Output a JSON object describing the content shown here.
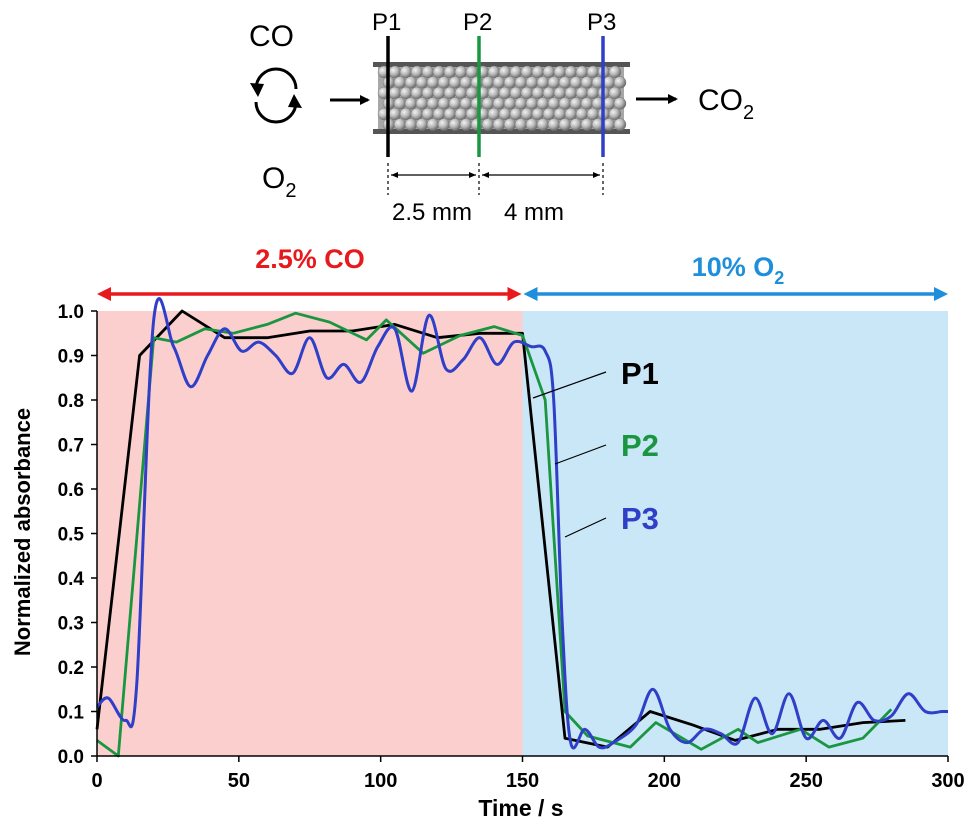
{
  "schematic": {
    "co_label": "CO",
    "o2_label": "O",
    "o2_sub": "2",
    "co2_label": "CO",
    "co2_sub": "2",
    "probes": [
      "P1",
      "P2",
      "P3"
    ],
    "dist1": "2.5 mm",
    "dist2": "4 mm"
  },
  "regions": {
    "left_label": "2.5% CO",
    "right_label_main": "10% O",
    "right_label_sub": "2",
    "left_color": "#fccfcf",
    "right_color": "#c9e7f6",
    "left_arrow_color": "#e8191c",
    "right_arrow_color": "#1f8fdc"
  },
  "chart_data": {
    "type": "line",
    "xlabel": "Time / s",
    "ylabel": "Normalized absorbance",
    "xlim": [
      0,
      300
    ],
    "ylim": [
      0,
      1.0
    ],
    "xticks": [
      0,
      50,
      100,
      150,
      200,
      250,
      300
    ],
    "yticks": [
      0.0,
      0.1,
      0.2,
      0.3,
      0.4,
      0.5,
      0.6,
      0.7,
      0.8,
      0.9,
      1.0
    ],
    "ytick_labels": [
      "0.0",
      "0.1",
      "0.2",
      "0.3",
      "0.4",
      "0.5",
      "0.6",
      "0.7",
      "0.8",
      "0.9",
      "1.0"
    ],
    "grid": false,
    "series": [
      {
        "name": "P1",
        "color": "#000000",
        "x": [
          0,
          15,
          30,
          45,
          60,
          75,
          90,
          105,
          120,
          135,
          150,
          165,
          180,
          195,
          210,
          225,
          240,
          255,
          270,
          285
        ],
        "y": [
          0.06,
          0.9,
          1.0,
          0.94,
          0.94,
          0.955,
          0.955,
          0.97,
          0.94,
          0.95,
          0.95,
          0.04,
          0.02,
          0.1,
          0.07,
          0.035,
          0.06,
          0.06,
          0.075,
          0.08
        ]
      },
      {
        "name": "P2",
        "color": "#1a9641",
        "x": [
          0,
          7.5,
          20,
          28,
          38,
          48,
          60,
          70,
          82,
          95,
          102,
          115,
          128,
          140,
          150,
          158,
          165,
          173,
          188,
          197,
          213,
          226,
          233,
          248,
          258,
          270,
          280
        ],
        "y": [
          0.035,
          0.0,
          0.94,
          0.93,
          0.96,
          0.95,
          0.97,
          0.995,
          0.975,
          0.935,
          0.98,
          0.905,
          0.945,
          0.965,
          0.945,
          0.8,
          0.1,
          0.045,
          0.02,
          0.075,
          0.015,
          0.06,
          0.03,
          0.06,
          0.02,
          0.04,
          0.105
        ]
      },
      {
        "name": "P3",
        "color": "#2f3fc7",
        "x": [
          0,
          4,
          10,
          14,
          20,
          27,
          33,
          39,
          45,
          51,
          57,
          63,
          69,
          75,
          81,
          87,
          93,
          99,
          105,
          111,
          117,
          123,
          129,
          135,
          141,
          147,
          153,
          158,
          161,
          164,
          167,
          172,
          177,
          182,
          190,
          196,
          202,
          208,
          214,
          220,
          226,
          232,
          238,
          244,
          250,
          256,
          262,
          268,
          274,
          280,
          286,
          292,
          298,
          300
        ],
        "y": [
          0.11,
          0.13,
          0.08,
          0.16,
          0.98,
          0.92,
          0.83,
          0.9,
          0.96,
          0.91,
          0.93,
          0.9,
          0.86,
          0.94,
          0.85,
          0.88,
          0.84,
          0.92,
          0.96,
          0.82,
          0.99,
          0.87,
          0.89,
          0.94,
          0.88,
          0.93,
          0.92,
          0.91,
          0.8,
          0.3,
          0.03,
          0.06,
          0.02,
          0.03,
          0.07,
          0.15,
          0.06,
          0.03,
          0.06,
          0.05,
          0.03,
          0.13,
          0.05,
          0.14,
          0.04,
          0.08,
          0.04,
          0.12,
          0.08,
          0.09,
          0.14,
          0.1,
          0.1,
          0.1
        ]
      }
    ],
    "annotations": [
      "P1",
      "P2",
      "P3"
    ]
  }
}
